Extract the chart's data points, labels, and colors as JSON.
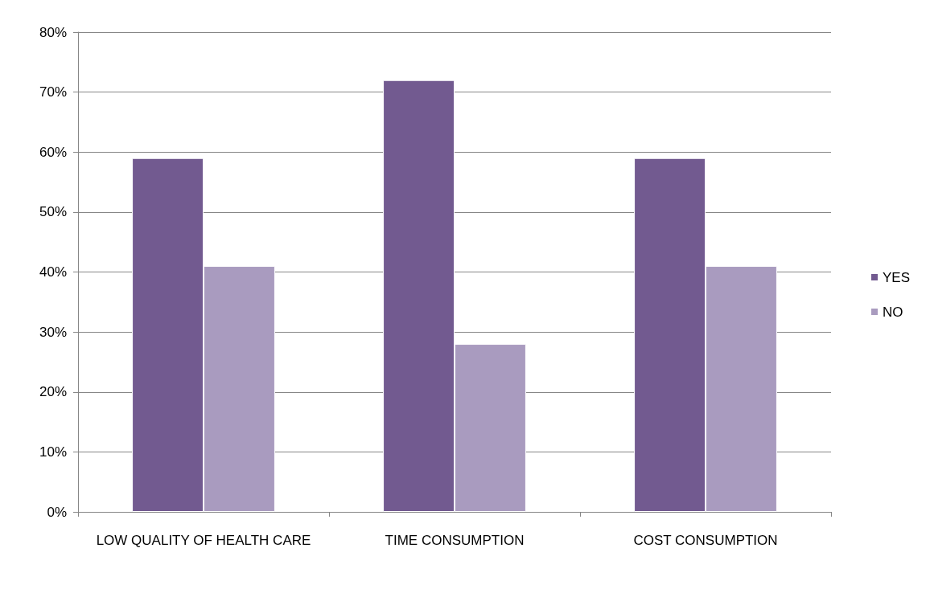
{
  "chart_data": {
    "type": "bar",
    "categories": [
      "LOW QUALITY OF HEALTH CARE",
      "TIME CONSUMPTION",
      "COST CONSUMPTION"
    ],
    "series": [
      {
        "name": "YES",
        "color": "#725a90",
        "values": [
          59,
          72,
          59
        ]
      },
      {
        "name": "NO",
        "color": "#a99bbf",
        "values": [
          41,
          28,
          41
        ]
      }
    ],
    "ylim": [
      0,
      80
    ],
    "yticks": [
      {
        "value": 0,
        "label": "0%"
      },
      {
        "value": 10,
        "label": "10%"
      },
      {
        "value": 20,
        "label": "20%"
      },
      {
        "value": 30,
        "label": "30%"
      },
      {
        "value": 40,
        "label": "40%"
      },
      {
        "value": 50,
        "label": "50%"
      },
      {
        "value": 60,
        "label": "60%"
      },
      {
        "value": 70,
        "label": "70%"
      },
      {
        "value": 80,
        "label": "80%"
      }
    ],
    "grid": "y",
    "legend": "right"
  }
}
